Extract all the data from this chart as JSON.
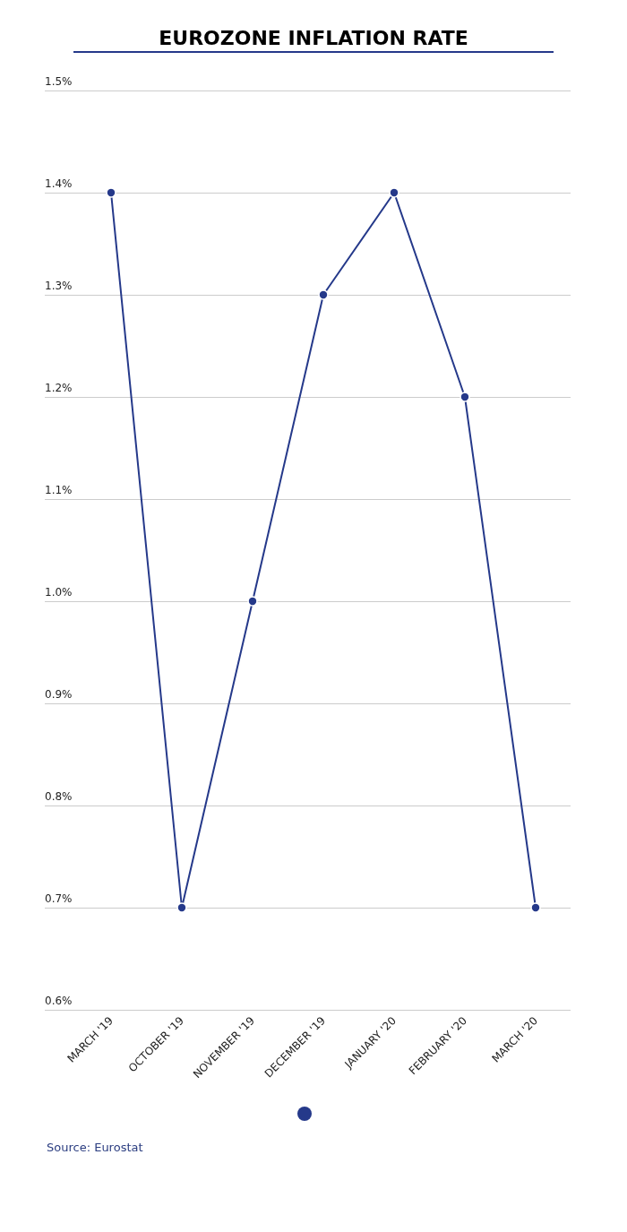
{
  "chart_data": {
    "type": "line",
    "title": "EUROZONE INFLATION RATE",
    "categories": [
      "MARCH '19",
      "OCTOBER '19",
      "NOVEMBER '19",
      "DECEMBER '19",
      "JANUARY '20",
      "FEBRUARY '20",
      "MARCH '20"
    ],
    "values": [
      1.4,
      0.7,
      1.0,
      1.3,
      1.4,
      1.2,
      0.7
    ],
    "color": "#25398a",
    "ylim": [
      0.6,
      1.5
    ],
    "yticks": [
      {
        "value": 0.6,
        "label": "0.6%"
      },
      {
        "value": 0.7,
        "label": "0.7%"
      },
      {
        "value": 0.8,
        "label": "0.8%"
      },
      {
        "value": 0.9,
        "label": "0.9%"
      },
      {
        "value": 1.0,
        "label": "1.0%"
      },
      {
        "value": 1.1,
        "label": "1.1%"
      },
      {
        "value": 1.2,
        "label": "1.2%"
      },
      {
        "value": 1.3,
        "label": "1.3%"
      },
      {
        "value": 1.4,
        "label": "1.4%"
      },
      {
        "value": 1.5,
        "label": "1.5%"
      }
    ],
    "grid": "y",
    "marker": "circle",
    "line_style": "solid",
    "annotations": [
      "Source: Eurostat"
    ]
  }
}
